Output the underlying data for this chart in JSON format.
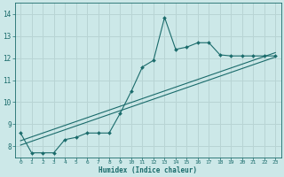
{
  "xlabel": "Humidex (Indice chaleur)",
  "bg_color": "#cce8e8",
  "grid_color": "#b8d4d4",
  "line_color": "#1a6b6b",
  "xlim": [
    -0.5,
    23.5
  ],
  "ylim": [
    7.5,
    14.5
  ],
  "xticks": [
    0,
    1,
    2,
    3,
    4,
    5,
    6,
    7,
    8,
    9,
    10,
    11,
    12,
    13,
    14,
    15,
    16,
    17,
    18,
    19,
    20,
    21,
    22,
    23
  ],
  "yticks": [
    8,
    9,
    10,
    11,
    12,
    13,
    14
  ],
  "main_x": [
    0,
    1,
    2,
    3,
    4,
    5,
    6,
    7,
    8,
    9,
    10,
    11,
    12,
    13,
    14,
    15,
    16,
    17,
    18,
    19,
    20,
    21,
    22,
    23
  ],
  "main_y": [
    8.6,
    7.7,
    7.7,
    7.7,
    8.3,
    8.4,
    8.6,
    8.6,
    8.6,
    9.5,
    10.5,
    11.6,
    11.9,
    13.85,
    12.4,
    12.5,
    12.7,
    12.7,
    12.15,
    12.1,
    12.1,
    12.1,
    12.1,
    12.1
  ],
  "line1_x": [
    0,
    23
  ],
  "line1_y": [
    8.05,
    12.05
  ],
  "line2_x": [
    0,
    23
  ],
  "line2_y": [
    8.25,
    12.25
  ]
}
